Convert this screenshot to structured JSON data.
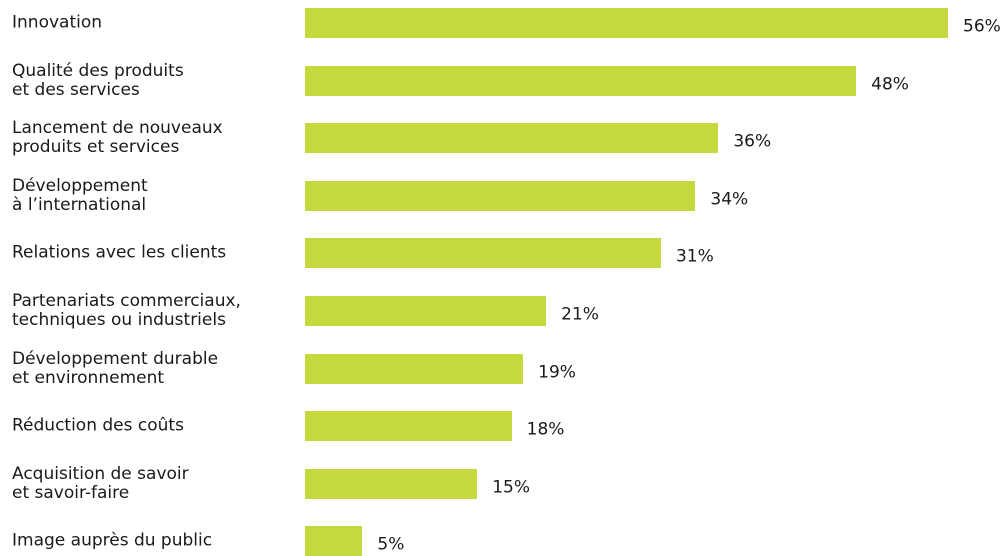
{
  "chart_data": {
    "type": "bar",
    "orientation": "horizontal",
    "categories": [
      "Innovation",
      "Qualité des produits\net des services",
      "Lancement de nouveaux\nproduits et services",
      "Développement\nà l’international",
      "Relations avec les clients",
      "Partenariats commerciaux,\ntechniques ou industriels",
      "Développement durable\net environnement",
      "Réduction des coûts",
      "Acquisition de savoir\net savoir-faire",
      "Image auprès du public"
    ],
    "values": [
      56,
      48,
      36,
      34,
      31,
      21,
      19,
      18,
      15,
      5
    ],
    "value_labels": [
      "56%",
      "48%",
      "36%",
      "34%",
      "31%",
      "21%",
      "19%",
      "18%",
      "15%",
      "5%"
    ],
    "unit": "%",
    "xlim": [
      0,
      56
    ],
    "grid": false,
    "legend": "none",
    "bar_color": "#c5d93e",
    "text_color": "#1a1a1a"
  }
}
